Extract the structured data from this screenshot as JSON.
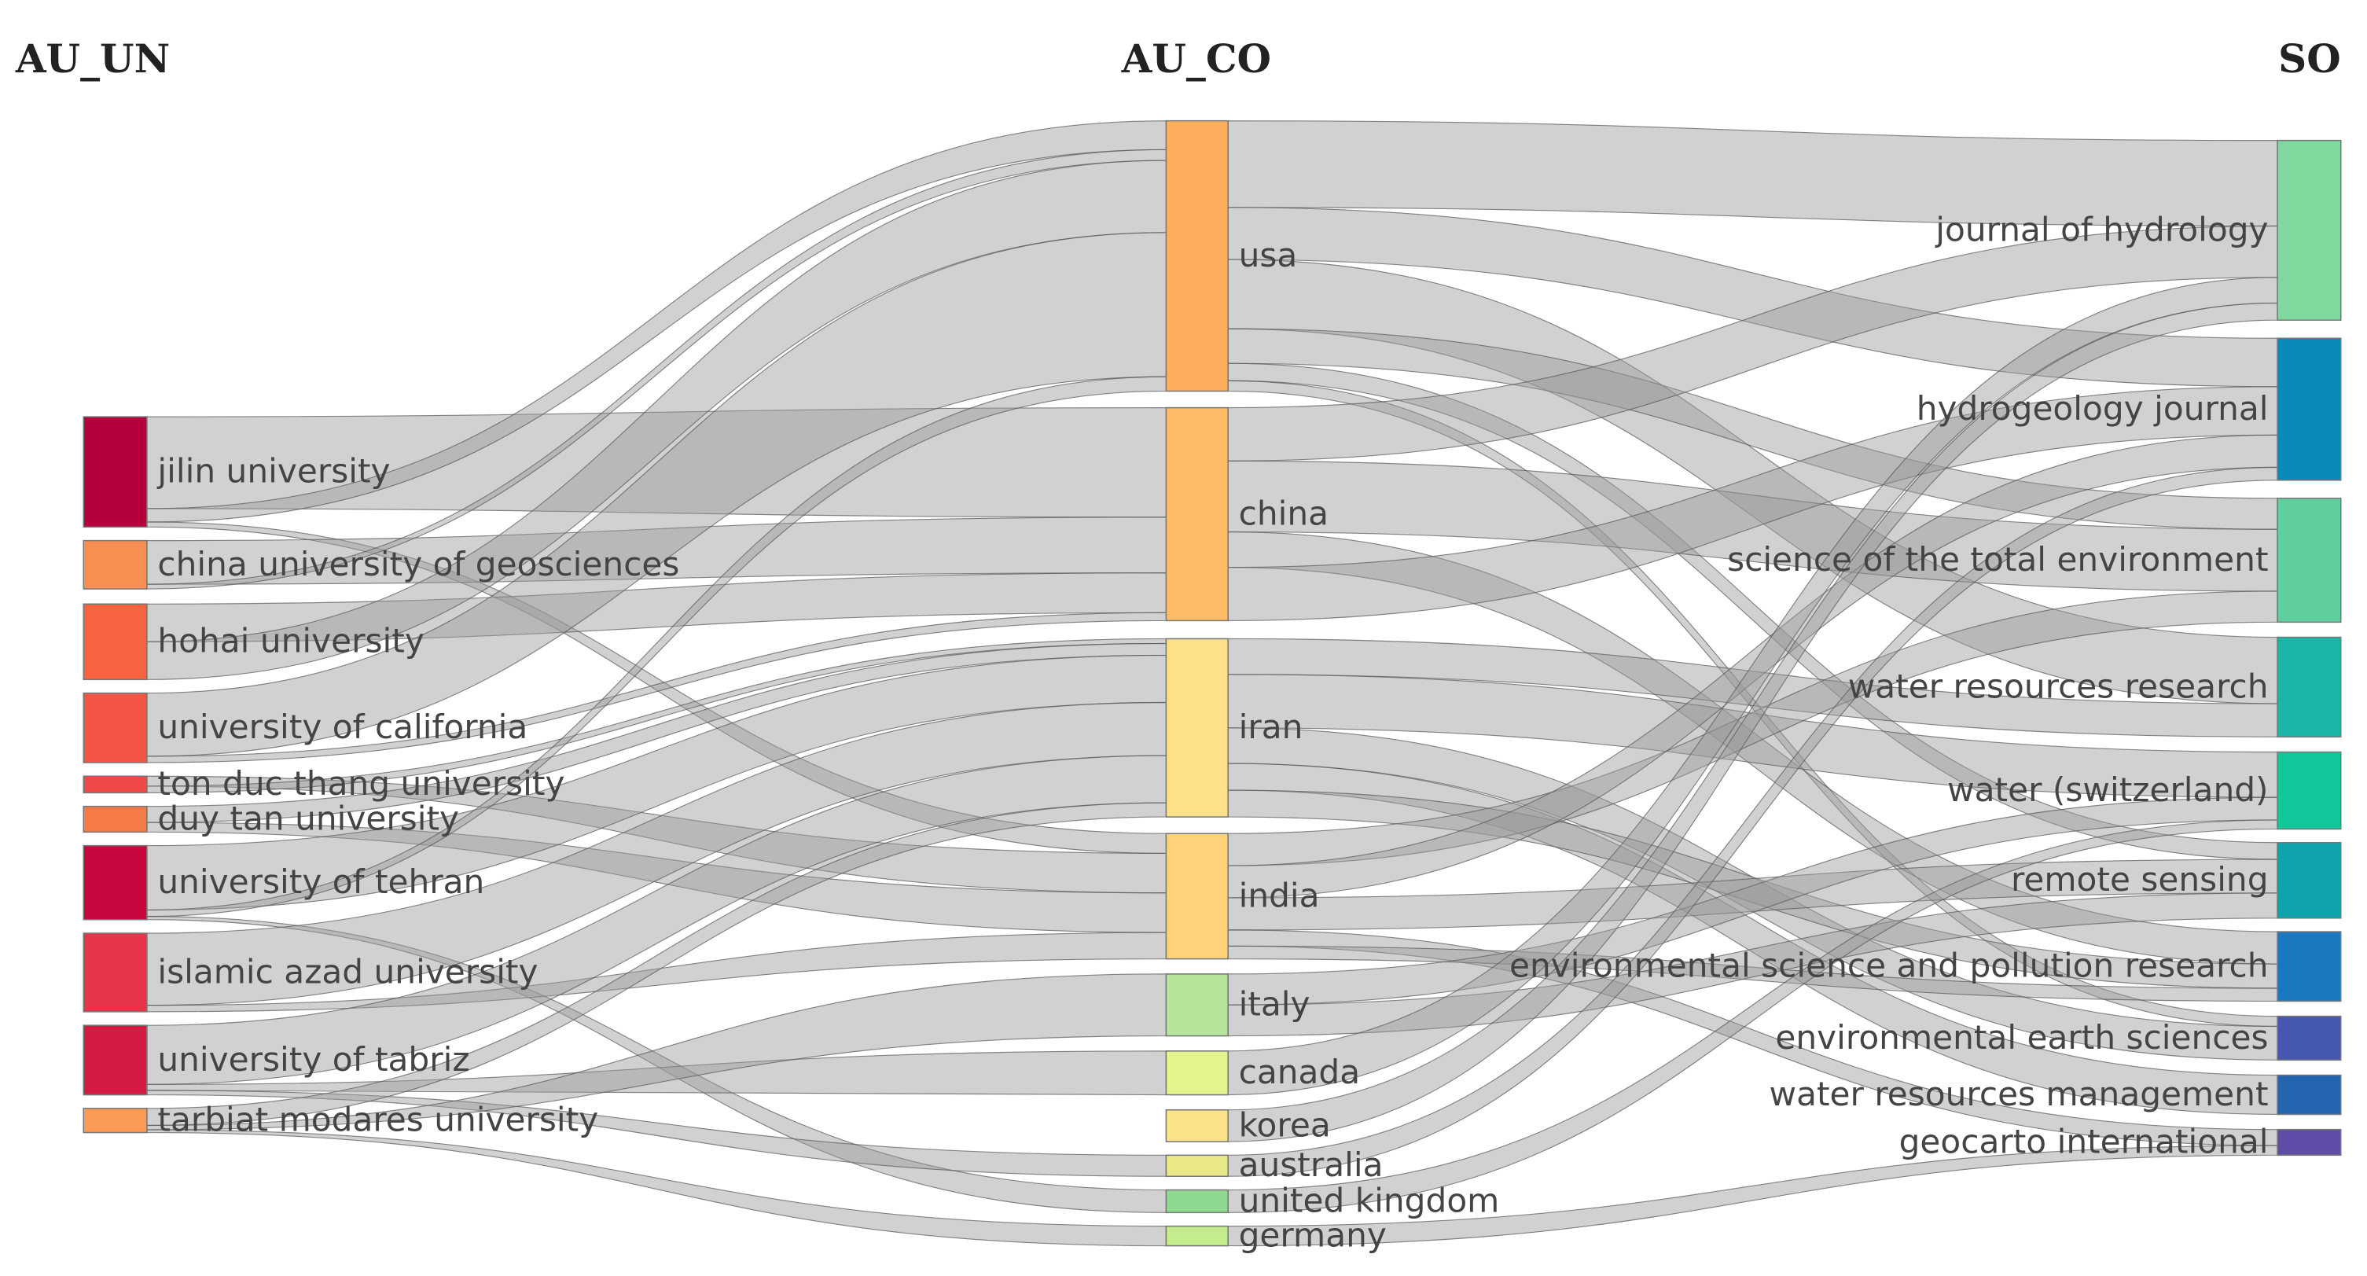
{
  "columns": [
    {
      "title": "AU_UN",
      "nodes": [
        {
          "label": "jilin university",
          "color": "#b5003c"
        },
        {
          "label": "china university of geosciences",
          "color": "#f98e52"
        },
        {
          "label": "hohai university",
          "color": "#f7623f"
        },
        {
          "label": "university of california",
          "color": "#f25544"
        },
        {
          "label": "ton duc thang university",
          "color": "#ee4a4a"
        },
        {
          "label": "duy tan university",
          "color": "#f47a47"
        },
        {
          "label": "university of tehran",
          "color": "#c9073f"
        },
        {
          "label": "islamic azad university",
          "color": "#e8344a"
        },
        {
          "label": "university of tabriz",
          "color": "#d51b43"
        },
        {
          "label": "tarbiat modares university",
          "color": "#fa9a55"
        }
      ]
    },
    {
      "title": "AU_CO",
      "nodes": [
        {
          "label": "usa",
          "color": "#fdae5c"
        },
        {
          "label": "china",
          "color": "#fdbc65"
        },
        {
          "label": "iran",
          "color": "#fee08b"
        },
        {
          "label": "india",
          "color": "#fdd27a"
        },
        {
          "label": "italy",
          "color": "#b5e49a"
        },
        {
          "label": "canada",
          "color": "#e4f48f"
        },
        {
          "label": "korea",
          "color": "#fbe38a"
        },
        {
          "label": "australia",
          "color": "#e9e98a"
        },
        {
          "label": "united kingdom",
          "color": "#8fd88f"
        },
        {
          "label": "germany",
          "color": "#c4ec8c"
        }
      ]
    },
    {
      "title": "SO",
      "nodes": [
        {
          "label": "journal of hydrology",
          "color": "#7fd89e"
        },
        {
          "label": "hydrogeology journal",
          "color": "#0a8ab9"
        },
        {
          "label": "science of the total environment",
          "color": "#5fcf9d"
        },
        {
          "label": "water resources research",
          "color": "#1ab5a6"
        },
        {
          "label": "water (switzerland)",
          "color": "#12c79a"
        },
        {
          "label": "remote sensing",
          "color": "#0fa3ab"
        },
        {
          "label": "environmental science and pollution research",
          "color": "#1a78c0"
        },
        {
          "label": "environmental earth sciences",
          "color": "#4657b0"
        },
        {
          "label": "water resources management",
          "color": "#2465b0"
        },
        {
          "label": "geocarto international",
          "color": "#5f4ca8"
        }
      ]
    }
  ]
}
